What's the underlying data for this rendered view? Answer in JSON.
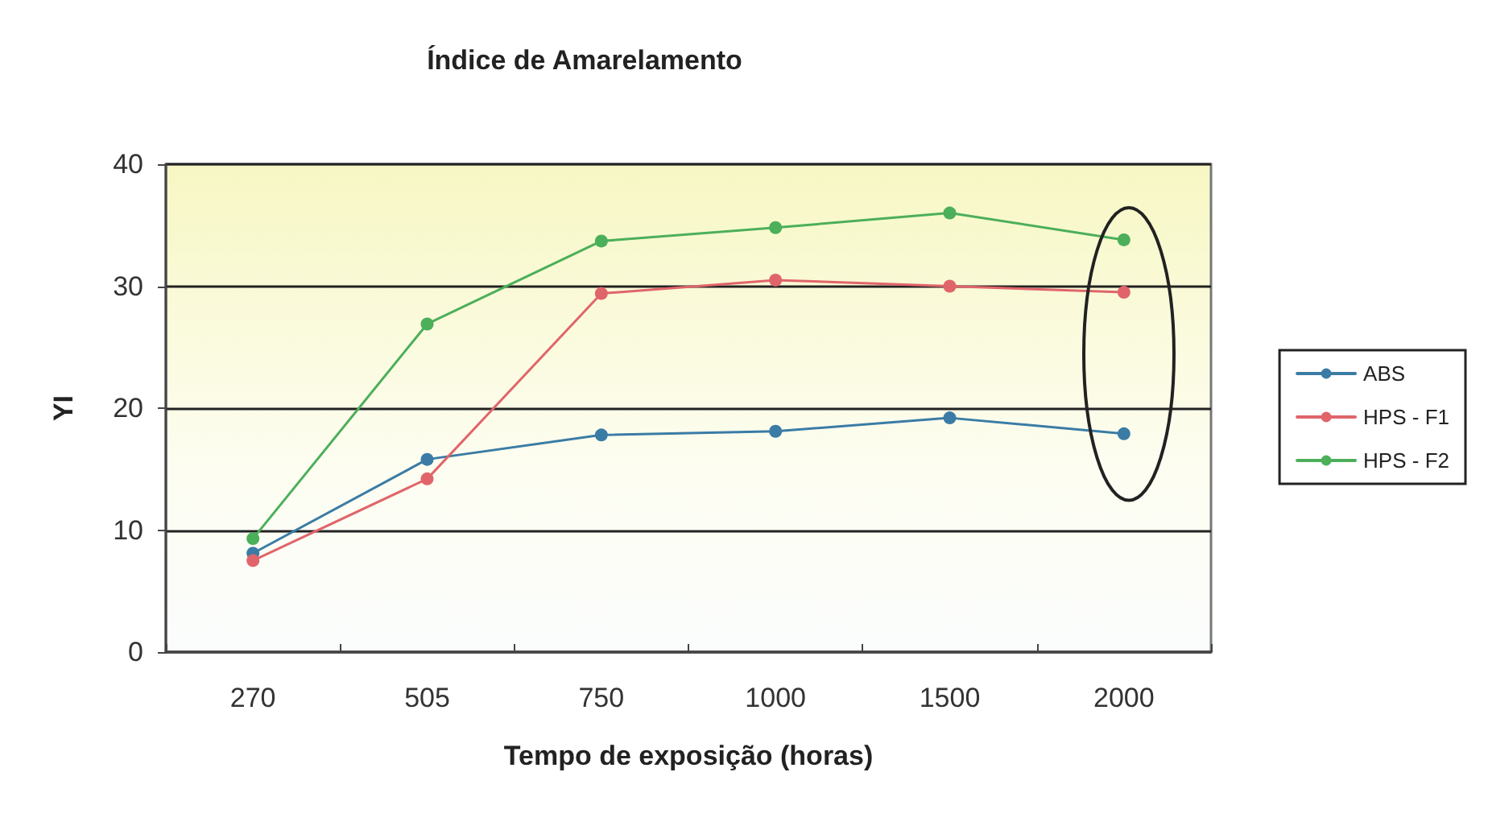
{
  "chart_data": {
    "type": "line",
    "title": "Índice de Amarelamento",
    "xlabel": "Tempo de exposição (horas)",
    "ylabel": "YI",
    "categories": [
      "270",
      "505",
      "750",
      "1000",
      "1500",
      "2000"
    ],
    "series": [
      {
        "name": "ABS",
        "color": "#3a7ca5",
        "values": [
          8.1,
          15.8,
          17.8,
          18.1,
          19.2,
          17.9
        ]
      },
      {
        "name": "HPS - F1",
        "color": "#e0656a",
        "values": [
          7.5,
          14.2,
          29.4,
          30.5,
          30.0,
          29.5
        ]
      },
      {
        "name": "HPS - F2",
        "color": "#4caf5a",
        "values": [
          9.3,
          26.9,
          33.7,
          34.8,
          36.0,
          33.8
        ]
      }
    ],
    "ylim": [
      0,
      40
    ],
    "yticks": [
      0,
      10,
      20,
      30,
      40
    ],
    "grid": "y",
    "legend": "right",
    "marker": "circle",
    "line_style": "solid"
  }
}
